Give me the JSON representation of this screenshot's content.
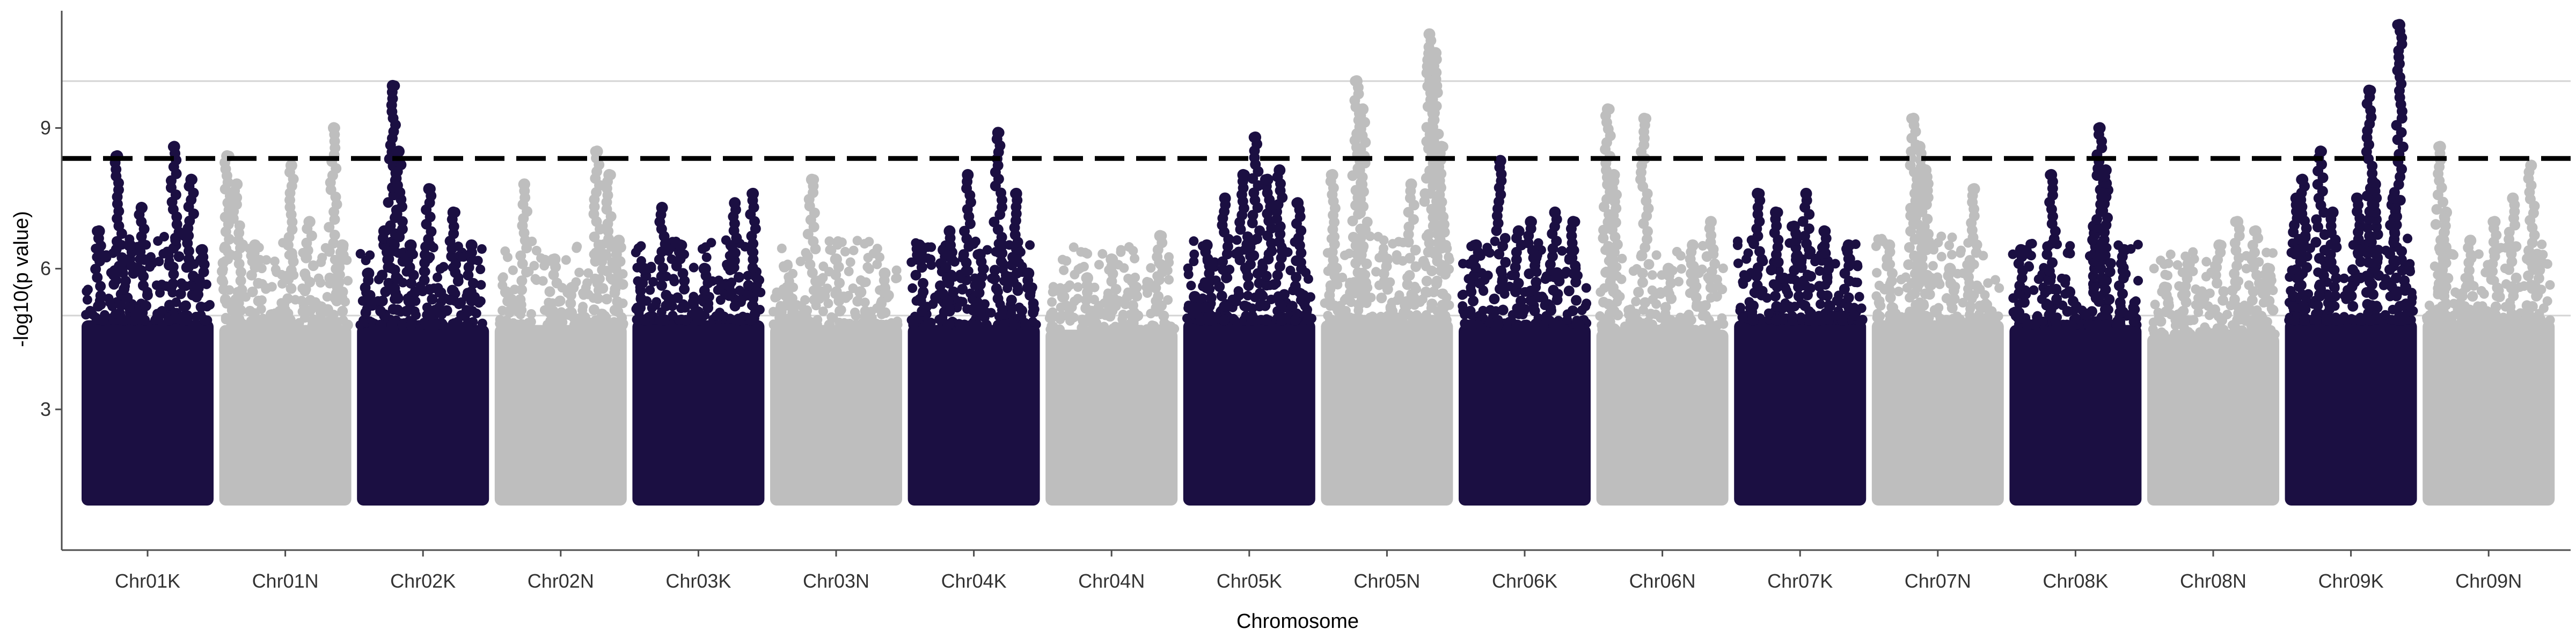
{
  "chart_data": {
    "type": "scatter",
    "subtype": "manhattan",
    "title": "",
    "xlabel": "Chromosome",
    "ylabel": "-log10(p value)",
    "ylim": [
      0,
      11.5
    ],
    "yticks": [
      3,
      6,
      9
    ],
    "gridlines_y": [
      5,
      10
    ],
    "significance_threshold": 8.35,
    "colors": {
      "dark": "#1b0f42",
      "light": "#bebebe",
      "grid": "#d4d4d4",
      "threshold": "#000000",
      "axis": "#4d4d4d"
    },
    "categories": [
      "Chr01K",
      "Chr01N",
      "Chr02K",
      "Chr02N",
      "Chr03K",
      "Chr03N",
      "Chr04K",
      "Chr04N",
      "Chr05K",
      "Chr05N",
      "Chr06K",
      "Chr06N",
      "Chr07K",
      "Chr07N",
      "Chr08K",
      "Chr08N",
      "Chr09K",
      "Chr09N"
    ],
    "series": [
      {
        "chromosome": "Chr01K",
        "color": "dark",
        "bulk_max": 4.9,
        "peaks": [
          [
            0.1,
            6.8
          ],
          [
            0.25,
            8.4
          ],
          [
            0.35,
            6.5
          ],
          [
            0.45,
            7.3
          ],
          [
            0.72,
            8.6
          ],
          [
            0.86,
            7.9
          ],
          [
            0.95,
            6.4
          ]
        ]
      },
      {
        "chromosome": "Chr01N",
        "color": "light",
        "bulk_max": 4.8,
        "peaks": [
          [
            0.02,
            8.4
          ],
          [
            0.1,
            7.8
          ],
          [
            0.25,
            6.5
          ],
          [
            0.55,
            8.2
          ],
          [
            0.7,
            7.0
          ],
          [
            0.9,
            9.0
          ],
          [
            0.97,
            6.5
          ]
        ]
      },
      {
        "chromosome": "Chr02K",
        "color": "dark",
        "bulk_max": 4.8,
        "peaks": [
          [
            0.05,
            5.9
          ],
          [
            0.18,
            6.8
          ],
          [
            0.25,
            9.9
          ],
          [
            0.3,
            8.5
          ],
          [
            0.4,
            6.5
          ],
          [
            0.55,
            7.7
          ],
          [
            0.75,
            7.2
          ],
          [
            0.9,
            6.5
          ]
        ]
      },
      {
        "chromosome": "Chr02N",
        "color": "light",
        "bulk_max": 4.8,
        "peaks": [
          [
            0.05,
            5.5
          ],
          [
            0.2,
            7.8
          ],
          [
            0.45,
            6.2
          ],
          [
            0.6,
            5.6
          ],
          [
            0.8,
            8.5
          ],
          [
            0.9,
            8.0
          ],
          [
            0.98,
            6.6
          ]
        ]
      },
      {
        "chromosome": "Chr03K",
        "color": "dark",
        "bulk_max": 4.9,
        "peaks": [
          [
            0.05,
            6.0
          ],
          [
            0.2,
            7.3
          ],
          [
            0.35,
            6.5
          ],
          [
            0.55,
            6.0
          ],
          [
            0.8,
            7.4
          ],
          [
            0.95,
            7.6
          ]
        ]
      },
      {
        "chromosome": "Chr03N",
        "color": "light",
        "bulk_max": 4.8,
        "peaks": [
          [
            0.1,
            5.6
          ],
          [
            0.3,
            7.9
          ],
          [
            0.5,
            6.2
          ],
          [
            0.7,
            5.5
          ],
          [
            0.9,
            5.9
          ]
        ]
      },
      {
        "chromosome": "Chr04K",
        "color": "dark",
        "bulk_max": 4.8,
        "peaks": [
          [
            0.05,
            6.5
          ],
          [
            0.25,
            6.4
          ],
          [
            0.3,
            6.8
          ],
          [
            0.45,
            8.0
          ],
          [
            0.55,
            6.3
          ],
          [
            0.7,
            8.9
          ],
          [
            0.85,
            7.6
          ],
          [
            0.95,
            5.9
          ]
        ]
      },
      {
        "chromosome": "Chr04N",
        "color": "light",
        "bulk_max": 4.7,
        "peaks": [
          [
            0.1,
            5.4
          ],
          [
            0.3,
            5.8
          ],
          [
            0.5,
            6.2
          ],
          [
            0.7,
            5.6
          ],
          [
            0.9,
            6.7
          ]
        ]
      },
      {
        "chromosome": "Chr05K",
        "color": "dark",
        "bulk_max": 4.9,
        "peaks": [
          [
            0.05,
            5.4
          ],
          [
            0.15,
            6.5
          ],
          [
            0.3,
            7.5
          ],
          [
            0.45,
            8.0
          ],
          [
            0.55,
            8.8
          ],
          [
            0.65,
            7.9
          ],
          [
            0.75,
            8.1
          ],
          [
            0.9,
            7.4
          ]
        ]
      },
      {
        "chromosome": "Chr05N",
        "color": "light",
        "bulk_max": 4.9,
        "peaks": [
          [
            0.05,
            8.0
          ],
          [
            0.25,
            10.0
          ],
          [
            0.3,
            9.4
          ],
          [
            0.5,
            6.2
          ],
          [
            0.7,
            7.8
          ],
          [
            0.85,
            11.0
          ],
          [
            0.9,
            10.6
          ],
          [
            0.95,
            8.6
          ]
        ]
      },
      {
        "chromosome": "Chr06K",
        "color": "dark",
        "bulk_max": 4.8,
        "peaks": [
          [
            0.1,
            6.5
          ],
          [
            0.3,
            8.3
          ],
          [
            0.45,
            6.8
          ],
          [
            0.55,
            7.0
          ],
          [
            0.75,
            7.2
          ],
          [
            0.9,
            7.0
          ]
        ]
      },
      {
        "chromosome": "Chr06N",
        "color": "light",
        "bulk_max": 4.7,
        "peaks": [
          [
            0.05,
            9.4
          ],
          [
            0.1,
            8.0
          ],
          [
            0.35,
            9.2
          ],
          [
            0.55,
            6.0
          ],
          [
            0.75,
            6.5
          ],
          [
            0.9,
            7.0
          ]
        ]
      },
      {
        "chromosome": "Chr07K",
        "color": "dark",
        "bulk_max": 4.9,
        "peaks": [
          [
            0.15,
            7.6
          ],
          [
            0.3,
            7.2
          ],
          [
            0.45,
            6.9
          ],
          [
            0.55,
            7.6
          ],
          [
            0.7,
            6.8
          ],
          [
            0.9,
            6.5
          ]
        ]
      },
      {
        "chromosome": "Chr07N",
        "color": "light",
        "bulk_max": 4.9,
        "peaks": [
          [
            0.1,
            6.5
          ],
          [
            0.3,
            9.2
          ],
          [
            0.35,
            8.6
          ],
          [
            0.4,
            8.1
          ],
          [
            0.6,
            6.0
          ],
          [
            0.8,
            7.7
          ]
        ]
      },
      {
        "chromosome": "Chr08K",
        "color": "dark",
        "bulk_max": 4.8,
        "peaks": [
          [
            0.05,
            6.4
          ],
          [
            0.3,
            8.0
          ],
          [
            0.45,
            5.5
          ],
          [
            0.65,
            6.9
          ],
          [
            0.7,
            9.0
          ],
          [
            0.75,
            8.1
          ],
          [
            0.9,
            6.4
          ]
        ]
      },
      {
        "chromosome": "Chr08N",
        "color": "light",
        "bulk_max": 4.6,
        "peaks": [
          [
            0.1,
            5.6
          ],
          [
            0.3,
            6.1
          ],
          [
            0.55,
            6.5
          ],
          [
            0.7,
            7.0
          ],
          [
            0.85,
            6.8
          ],
          [
            0.95,
            6.0
          ]
        ]
      },
      {
        "chromosome": "Chr09K",
        "color": "dark",
        "bulk_max": 4.9,
        "peaks": [
          [
            0.05,
            7.5
          ],
          [
            0.1,
            7.9
          ],
          [
            0.25,
            8.5
          ],
          [
            0.35,
            7.2
          ],
          [
            0.55,
            7.5
          ],
          [
            0.65,
            9.8
          ],
          [
            0.7,
            7.8
          ],
          [
            0.85,
            7.5
          ],
          [
            0.9,
            11.2
          ]
        ]
      },
      {
        "chromosome": "Chr09N",
        "color": "light",
        "bulk_max": 4.9,
        "peaks": [
          [
            0.1,
            8.6
          ],
          [
            0.15,
            7.2
          ],
          [
            0.35,
            6.6
          ],
          [
            0.55,
            7.0
          ],
          [
            0.7,
            7.5
          ],
          [
            0.85,
            8.2
          ],
          [
            0.9,
            6.3
          ]
        ]
      }
    ]
  }
}
